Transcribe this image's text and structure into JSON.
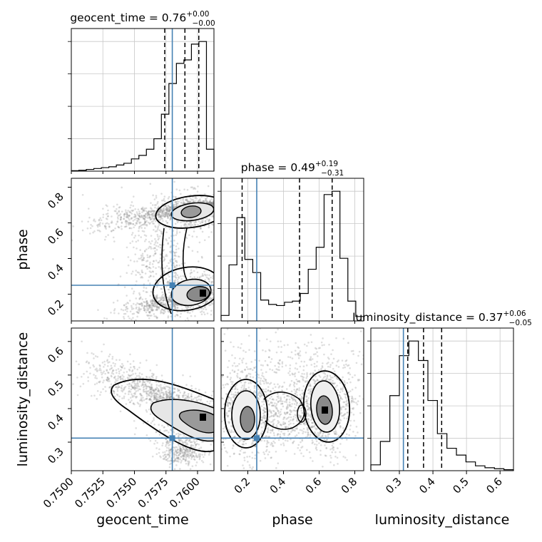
{
  "chart_data": {
    "type": "corner",
    "parameters": [
      "geocent_time",
      "phase",
      "luminosity_distance"
    ],
    "truths": {
      "geocent_time": 0.758,
      "phase": 0.25,
      "luminosity_distance": 0.312
    },
    "colors": {
      "truth": "#4682b4",
      "hist": "#000000",
      "grid": "#c8c8c8",
      "points": "#888888"
    },
    "titles": [
      {
        "param": "geocent_time",
        "prefix": "geocent_time = 0.76",
        "plus": "+0.00",
        "minus": "−0.00"
      },
      {
        "param": "phase",
        "prefix": "phase = 0.49",
        "plus": "+0.19",
        "minus": "−0.31"
      },
      {
        "param": "luminosity_distance",
        "prefix": "luminosity_distance = 0.37",
        "plus": "+0.06",
        "minus": "−0.05"
      }
    ],
    "axes": {
      "geocent_time": {
        "range": [
          0.75,
          0.7613
        ],
        "ticks": [
          "0.7500",
          "0.7525",
          "0.7550",
          "0.7575",
          "0.7600"
        ],
        "tick_values": [
          0.75,
          0.7525,
          0.755,
          0.7575,
          0.76
        ],
        "label": "geocent_time"
      },
      "phase": {
        "range": [
          0.05,
          0.85
        ],
        "x_ticks": [
          "0.2",
          "0.4",
          "0.6",
          "0.8"
        ],
        "x_tick_values": [
          0.2,
          0.4,
          0.6,
          0.8
        ],
        "y_ticks": [
          "0.2",
          "0.4",
          "0.6",
          "0.8"
        ],
        "y_tick_values": [
          0.2,
          0.4,
          0.6,
          0.8
        ],
        "label": "phase"
      },
      "luminosity_distance": {
        "range": [
          0.215,
          0.64
        ],
        "x_ticks": [
          "0.3",
          "0.4",
          "0.5",
          "0.6"
        ],
        "x_tick_values": [
          0.3,
          0.4,
          0.5,
          0.6
        ],
        "y_ticks": [
          "0.3",
          "0.4",
          "0.5",
          "0.6"
        ],
        "y_tick_values": [
          0.3,
          0.4,
          0.5,
          0.6
        ],
        "label": "luminosity_distance"
      }
    },
    "histograms": {
      "geocent_time": {
        "quantiles": [
          0.7574,
          0.759,
          0.7601
        ],
        "counts": [
          0.5,
          1,
          2,
          3,
          4,
          5,
          7,
          9,
          14,
          18,
          25,
          37,
          65,
          100,
          123,
          127,
          145,
          148,
          25
        ]
      },
      "phase": {
        "quantiles": [
          0.168,
          0.49,
          0.673
        ],
        "counts": [
          5,
          51,
          94,
          56,
          44,
          19,
          15,
          14,
          17,
          18,
          25,
          47,
          67,
          115,
          118,
          57,
          18,
          4
        ]
      },
      "luminosity_distance": {
        "quantiles": [
          0.325,
          0.372,
          0.426
        ],
        "counts": [
          6,
          30,
          77,
          118,
          133,
          113,
          72,
          38,
          23,
          16,
          9,
          5,
          3,
          2,
          1
        ]
      }
    }
  }
}
